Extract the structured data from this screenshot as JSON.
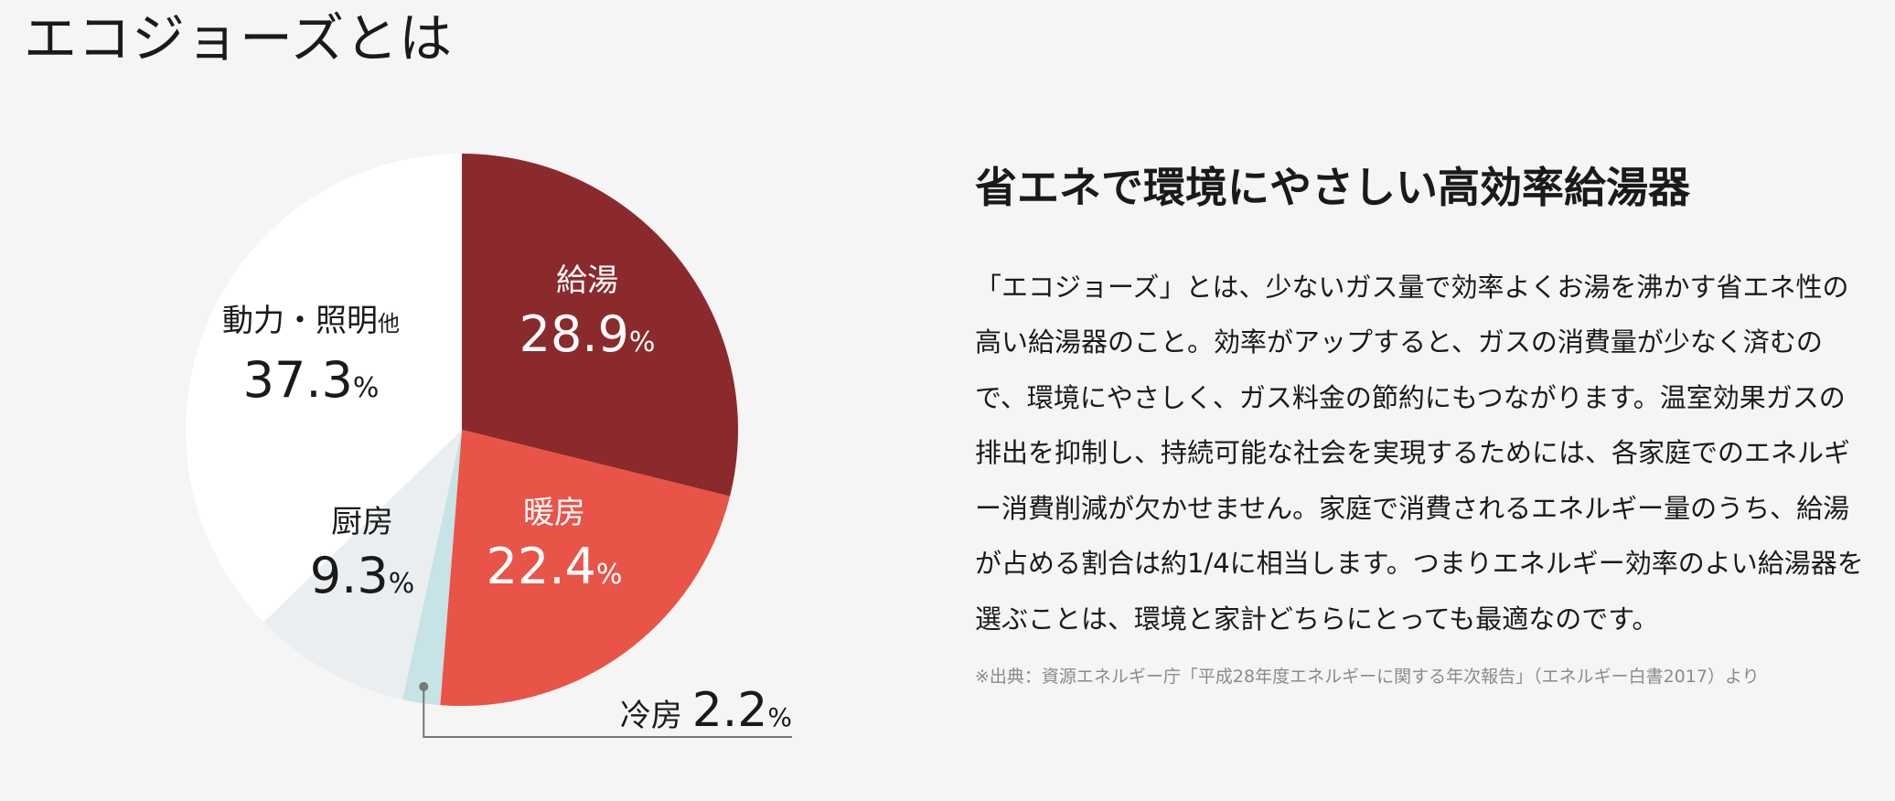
{
  "page": {
    "title": "エコジョーズとは"
  },
  "content": {
    "heading": "省エネで環境にやさしい高効率給湯器",
    "body": "「エコジョーズ」とは、少ないガス量で効率よくお湯を沸かす省エネ性の高い給湯器のこと。効率がアップすると、ガスの消費量が少なく済むので、環境にやさしく、ガス料金の節約にもつながります。温室効果ガスの排出を抑制し、持続可能な社会を実現するためには、各家庭でのエネルギー消費削減が欠かせません。家庭で消費されるエネルギー量のうち、給湯が占める割合は約1/4に相当します。つまりエネルギー効率のよい給湯器を選ぶことは、環境と家計どちらにとっても最適なのです。",
    "source": "※出典：資源エネルギー庁「平成28年度エネルギーに関する年次報告」（エネルギー白書2017）より"
  },
  "chart_data": {
    "type": "pie",
    "title": "",
    "unit": "%",
    "slices": [
      {
        "label": "給湯",
        "value": 28.9,
        "value_text": "28.9",
        "color": "#8b2a2c",
        "text_color": "#ffffff"
      },
      {
        "label": "暖房",
        "value": 22.4,
        "value_text": "22.4",
        "color": "#e85448",
        "text_color": "#ffffff"
      },
      {
        "label": "冷房",
        "value": 2.2,
        "value_text": "2.2",
        "color": "#c6e3e6",
        "text_color": "#1a1a1a"
      },
      {
        "label": "厨房",
        "value": 9.3,
        "value_text": "9.3",
        "color": "#ebeef0",
        "text_color": "#1a1a1a"
      },
      {
        "label": "動力・照明",
        "label_suffix": "他",
        "value": 37.3,
        "value_text": "37.3",
        "color": "#ffffff",
        "text_color": "#1a1a1a"
      }
    ]
  }
}
